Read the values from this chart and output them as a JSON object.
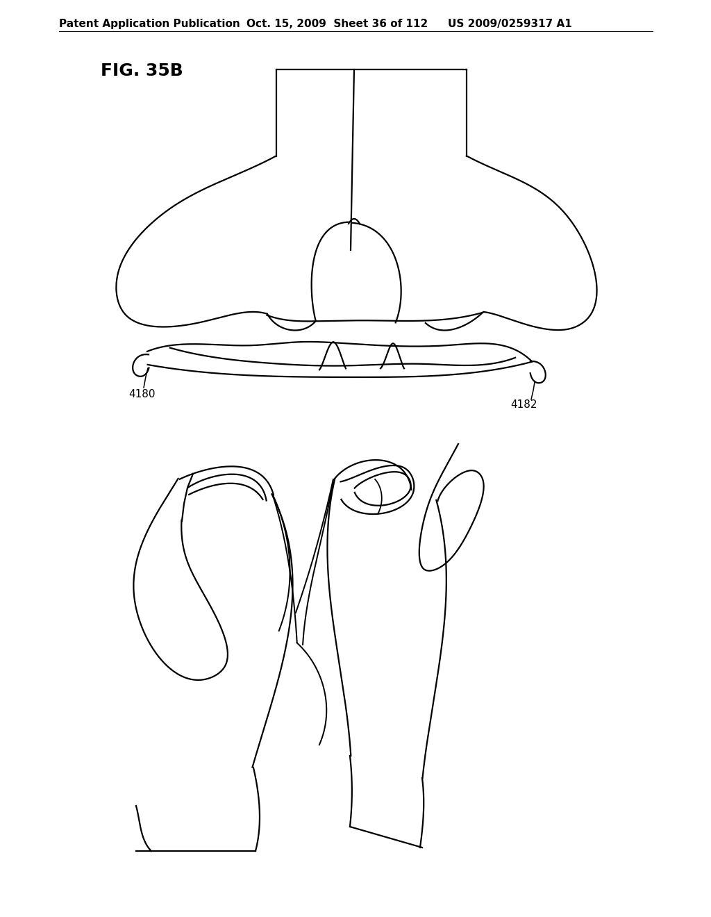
{
  "header_left": "Patent Application Publication",
  "header_mid": "Oct. 15, 2009  Sheet 36 of 112",
  "header_right": "US 2009/0259317 A1",
  "fig_label": "FIG. 35B",
  "label_4180": "4180",
  "label_4182": "4182",
  "bg_color": "#ffffff",
  "line_color": "#000000",
  "line_width": 1.6,
  "fig_label_fontsize": 18,
  "header_fontsize": 11
}
